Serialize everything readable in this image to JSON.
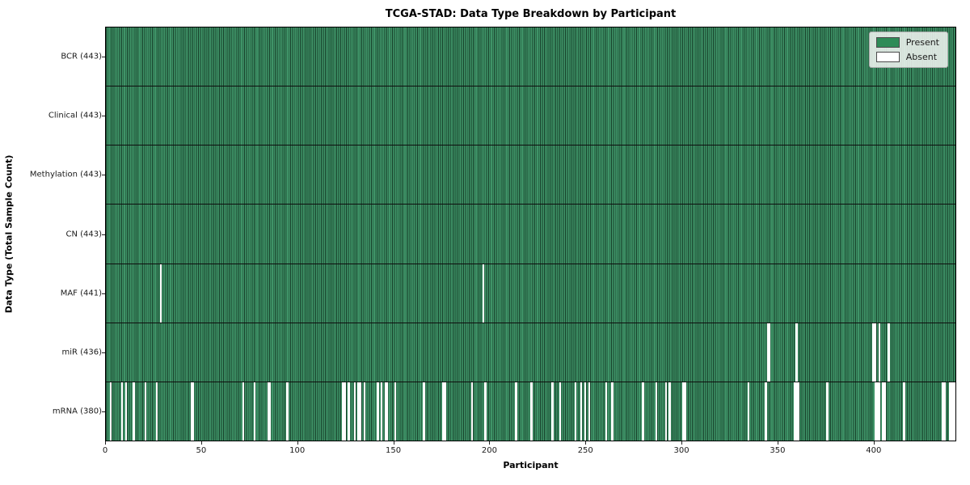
{
  "title": "TCGA-STAD: Data Type Breakdown by Participant",
  "xlabel": "Participant",
  "ylabel": "Data Type (Total Sample Count)",
  "legend": {
    "present_label": "Present",
    "absent_label": "Absent"
  },
  "colors": {
    "present": "#2e8b57",
    "present_fill": "#3f9468",
    "bar_edge": "#17402a",
    "absent": "#ffffff"
  },
  "chart_data": {
    "type": "heatmap",
    "title": "TCGA-STAD: Data Type Breakdown by Participant",
    "xlabel": "Participant",
    "ylabel": "Data Type (Total Sample Count)",
    "legend_entries": [
      "Present",
      "Absent"
    ],
    "legend_position": "upper right",
    "grid": false,
    "n_participants": 443,
    "x_range": [
      0,
      443
    ],
    "x_ticks": [
      0,
      50,
      100,
      150,
      200,
      250,
      300,
      350,
      400
    ],
    "rows": [
      {
        "label": "BCR (443)",
        "total": 443,
        "absent": []
      },
      {
        "label": "Clinical (443)",
        "total": 443,
        "absent": []
      },
      {
        "label": "Methylation (443)",
        "total": 443,
        "absent": []
      },
      {
        "label": "CN (443)",
        "total": 443,
        "absent": []
      },
      {
        "label": "MAF (441)",
        "total": 441,
        "absent": [
          28,
          196
        ]
      },
      {
        "label": "miR (436)",
        "total": 436,
        "absent": [
          344,
          345,
          359,
          399,
          400,
          402,
          407
        ]
      },
      {
        "label": "mRNA (380)",
        "total": 380,
        "absent": [
          2,
          8,
          10,
          14,
          20,
          26,
          44,
          45,
          71,
          77,
          84,
          85,
          94,
          123,
          124,
          126,
          129,
          131,
          132,
          134,
          141,
          143,
          145,
          146,
          150,
          165,
          175,
          176,
          190,
          197,
          213,
          221,
          232,
          236,
          244,
          247,
          249,
          251,
          260,
          263,
          279,
          286,
          291,
          293,
          300,
          301,
          334,
          343,
          358,
          359,
          360,
          375,
          400,
          401,
          402,
          404,
          405,
          415,
          435,
          436,
          439,
          440,
          441
        ]
      }
    ]
  }
}
